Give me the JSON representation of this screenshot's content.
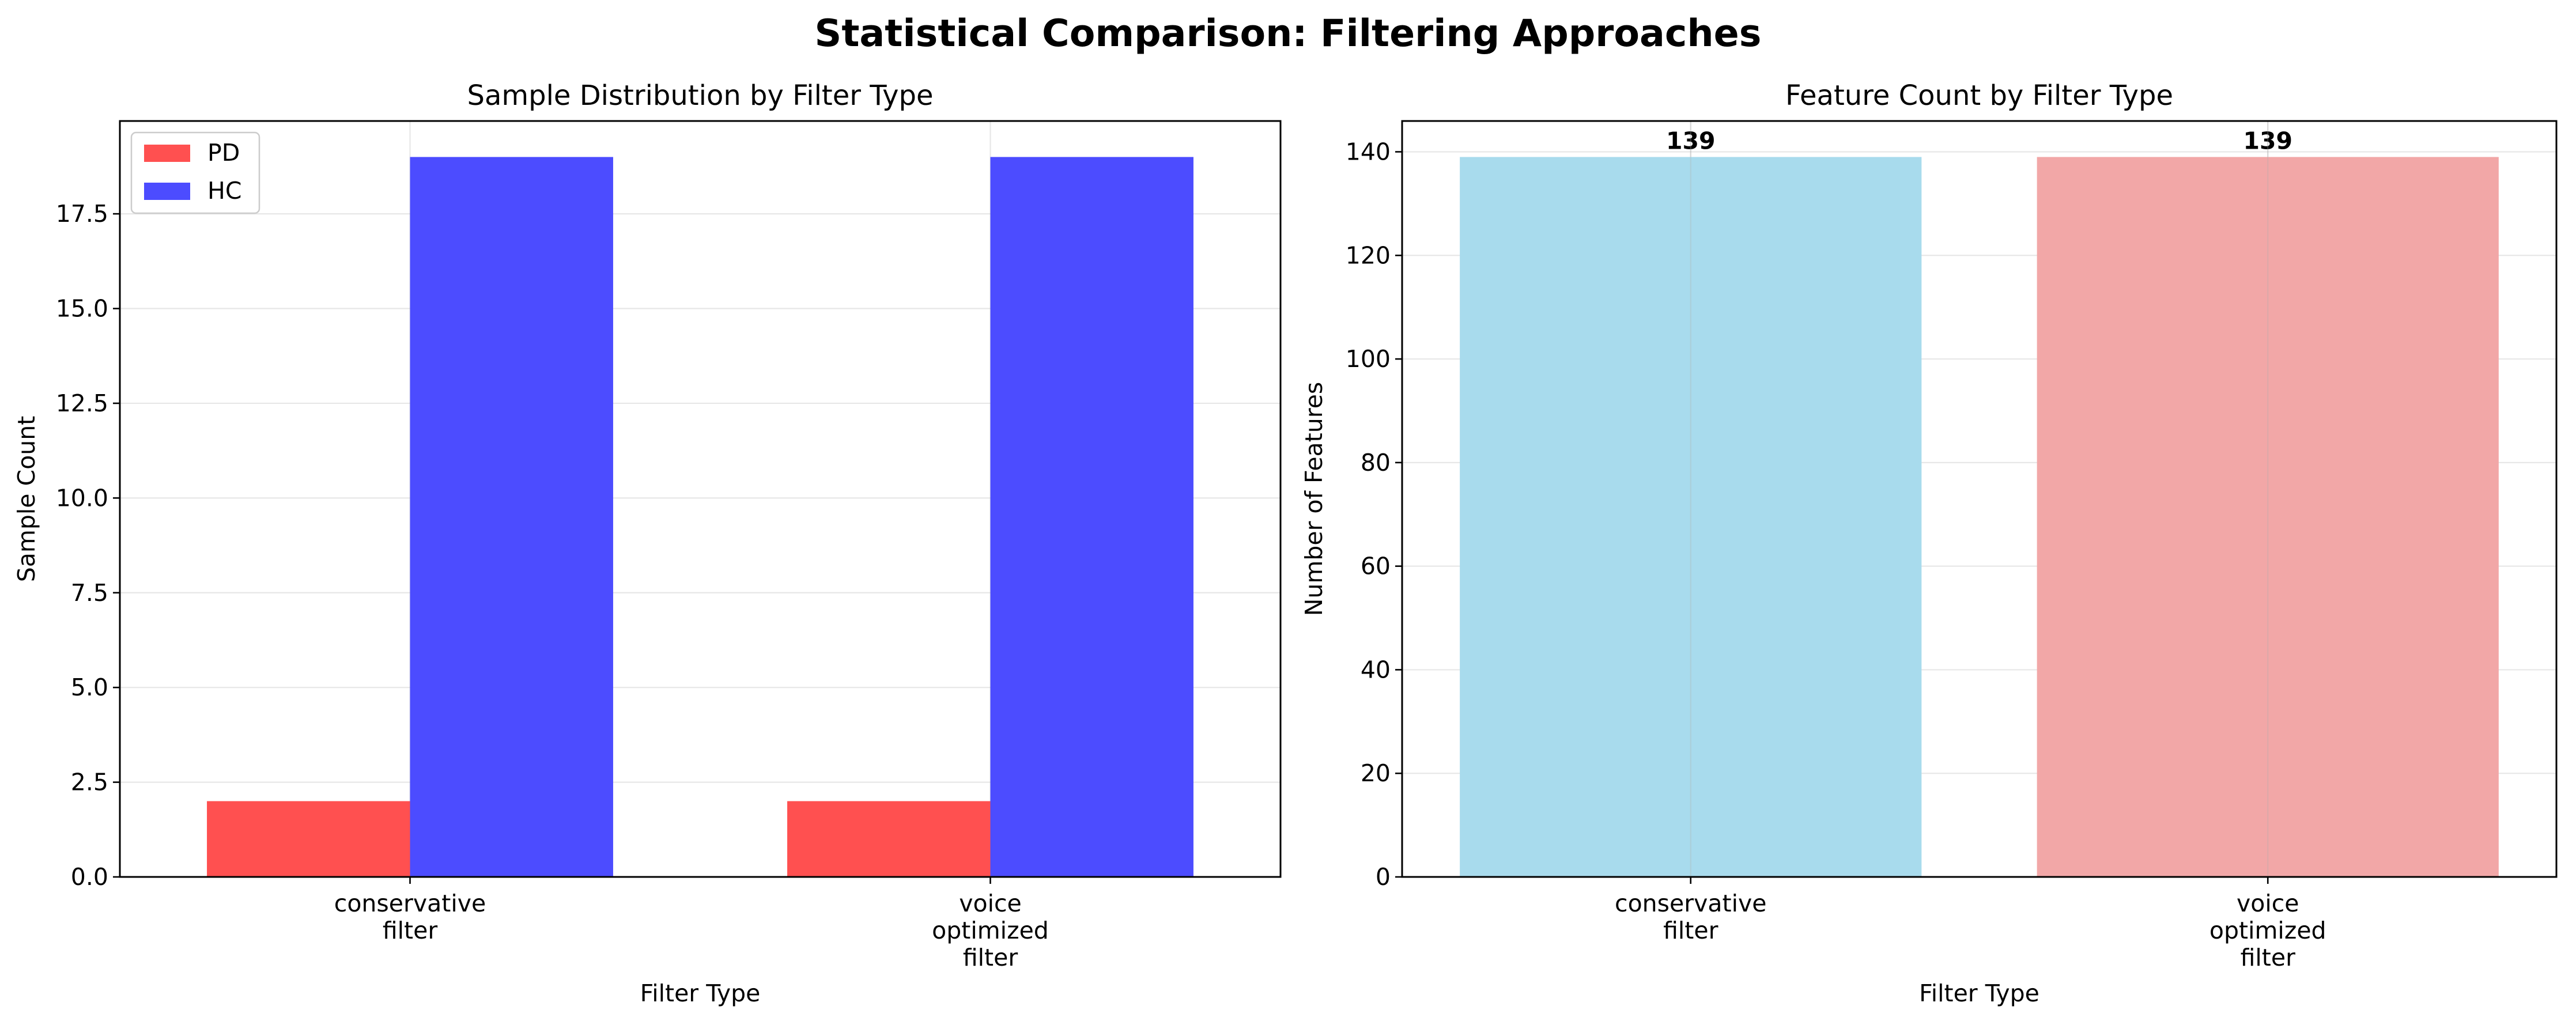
{
  "figure": {
    "title": "Statistical Comparison: Filtering Approaches"
  },
  "chart_data": [
    {
      "type": "bar",
      "title": "Sample Distribution by Filter Type",
      "xlabel": "Filter Type",
      "ylabel": "Sample Count",
      "categories": [
        [
          "conservative",
          "filter"
        ],
        [
          "voice",
          "optimized",
          "filter"
        ]
      ],
      "series": [
        {
          "name": "PD",
          "values": [
            2,
            2
          ],
          "color": "#ff5050"
        },
        {
          "name": "HC",
          "values": [
            19,
            19
          ],
          "color": "#4c4cff"
        }
      ],
      "ylim": [
        0,
        19.95
      ],
      "yticks": [
        "0.0",
        "2.5",
        "5.0",
        "7.5",
        "10.0",
        "12.5",
        "15.0",
        "17.5"
      ],
      "grid": true,
      "legend": "upper left"
    },
    {
      "type": "bar",
      "title": "Feature Count by Filter Type",
      "xlabel": "Filter Type",
      "ylabel": "Number of Features",
      "categories": [
        [
          "conservative",
          "filter"
        ],
        [
          "voice",
          "optimized",
          "filter"
        ]
      ],
      "values": [
        139,
        139
      ],
      "value_labels": [
        "139",
        "139"
      ],
      "colors": [
        "#a8dbed",
        "#f2a7a7"
      ],
      "ylim": [
        0,
        145.95
      ],
      "yticks": [
        "0",
        "20",
        "40",
        "60",
        "80",
        "100",
        "120",
        "140"
      ],
      "grid": true
    }
  ]
}
